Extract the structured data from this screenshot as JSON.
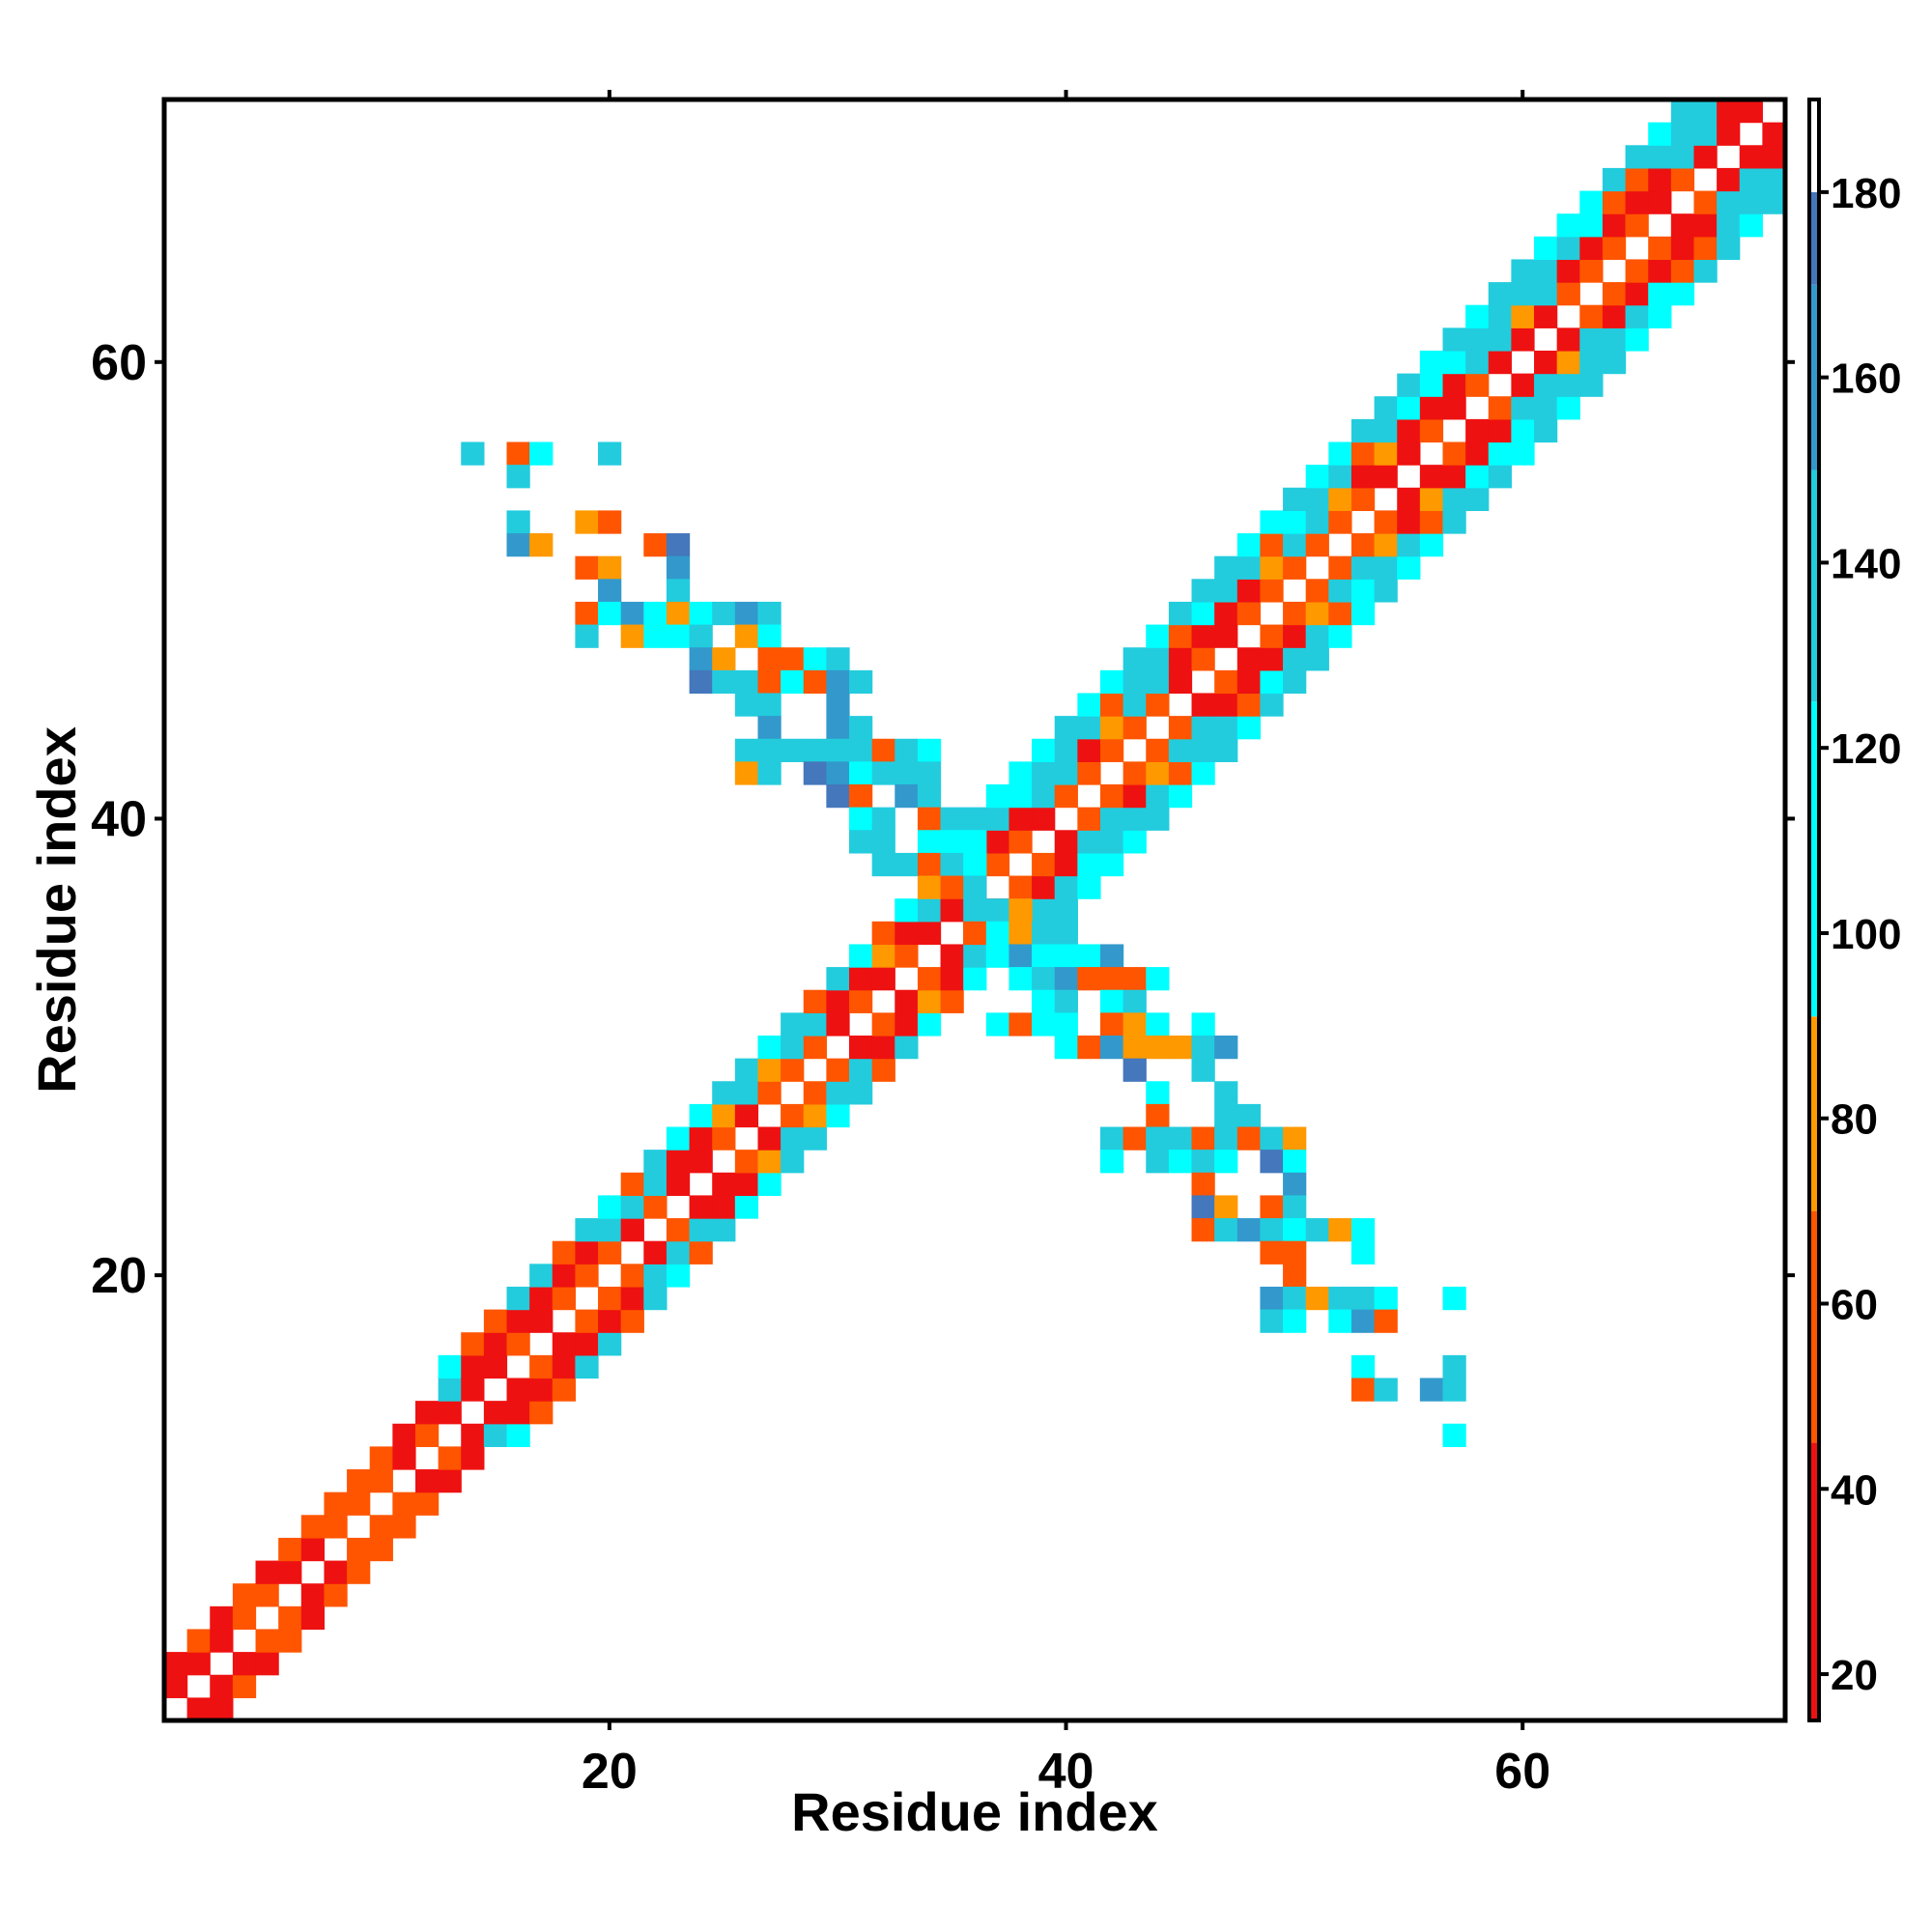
{
  "chart_data": {
    "type": "heatmap",
    "xlabel": "Residue index",
    "ylabel": "Residue index",
    "n_residues": 71,
    "xlim": [
      1,
      71
    ],
    "ylim": [
      1,
      71
    ],
    "x_ticks": [
      20,
      40,
      60
    ],
    "y_ticks": [
      20,
      40,
      60
    ],
    "colorbar": {
      "range": [
        15,
        190
      ],
      "ticks": [
        20,
        40,
        60,
        80,
        100,
        120,
        140,
        160,
        180
      ],
      "segments": [
        {
          "from": 15,
          "to": 45,
          "color": "#ee1111"
        },
        {
          "from": 45,
          "to": 70,
          "color": "#ff5500"
        },
        {
          "from": 70,
          "to": 91,
          "color": "#ff9900"
        },
        {
          "from": 91,
          "to": 125,
          "color": "#00ffff"
        },
        {
          "from": 125,
          "to": 150,
          "color": "#22ccdd"
        },
        {
          "from": 150,
          "to": 170,
          "color": "#3399cc"
        },
        {
          "from": 170,
          "to": 180,
          "color": "#4477bb"
        },
        {
          "from": 180,
          "to": 190,
          "color": "#ffffff"
        }
      ]
    },
    "main_diagonal_offsets": [
      1,
      2,
      3,
      4
    ],
    "band_widths": [
      {
        "from": 1,
        "to": 12,
        "max_offset": 2
      },
      {
        "from": 12,
        "to": 35,
        "max_offset": 3
      },
      {
        "from": 35,
        "to": 71,
        "max_offset": 4
      }
    ],
    "anti_diagonal": {
      "description_free": true,
      "points": [
        [
          14,
          56
        ],
        [
          16,
          56
        ],
        [
          17,
          56
        ],
        [
          20,
          56
        ],
        [
          16,
          55
        ],
        [
          16,
          53
        ],
        [
          19,
          53
        ],
        [
          20,
          53
        ],
        [
          16,
          52
        ],
        [
          17,
          52
        ],
        [
          22,
          52
        ],
        [
          23,
          52
        ],
        [
          19,
          51
        ],
        [
          20,
          51
        ],
        [
          23,
          51
        ],
        [
          20,
          50
        ],
        [
          23,
          50
        ],
        [
          19,
          49
        ],
        [
          20,
          49
        ],
        [
          21,
          49
        ],
        [
          22,
          49
        ],
        [
          23,
          49
        ],
        [
          24,
          49
        ],
        [
          25,
          49
        ],
        [
          26,
          49
        ],
        [
          27,
          49
        ],
        [
          19,
          48
        ],
        [
          21,
          48
        ],
        [
          22,
          48
        ],
        [
          23,
          48
        ],
        [
          24,
          48
        ],
        [
          26,
          48
        ],
        [
          27,
          48
        ],
        [
          24,
          47
        ],
        [
          25,
          47
        ],
        [
          27,
          47
        ],
        [
          28,
          47
        ],
        [
          29,
          47
        ],
        [
          30,
          47
        ],
        [
          24,
          46
        ],
        [
          25,
          46
        ],
        [
          26,
          46
        ],
        [
          27,
          46
        ],
        [
          28,
          46
        ],
        [
          29,
          46
        ],
        [
          30,
          46
        ],
        [
          31,
          46
        ],
        [
          26,
          45
        ],
        [
          27,
          45
        ],
        [
          30,
          45
        ],
        [
          27,
          44
        ],
        [
          30,
          44
        ],
        [
          31,
          44
        ],
        [
          26,
          43
        ],
        [
          27,
          43
        ],
        [
          28,
          43
        ],
        [
          29,
          43
        ],
        [
          30,
          43
        ],
        [
          31,
          43
        ],
        [
          32,
          43
        ],
        [
          33,
          43
        ],
        [
          34,
          43
        ],
        [
          26,
          42
        ],
        [
          27,
          42
        ],
        [
          29,
          42
        ],
        [
          30,
          42
        ],
        [
          31,
          42
        ],
        [
          32,
          42
        ],
        [
          33,
          42
        ],
        [
          34,
          42
        ],
        [
          30,
          41
        ],
        [
          31,
          41
        ],
        [
          33,
          41
        ],
        [
          34,
          41
        ],
        [
          31,
          40
        ],
        [
          32,
          40
        ],
        [
          34,
          40
        ],
        [
          35,
          40
        ],
        [
          31,
          39
        ],
        [
          32,
          39
        ],
        [
          34,
          39
        ],
        [
          35,
          39
        ],
        [
          36,
          39
        ],
        [
          32,
          38
        ],
        [
          33,
          38
        ],
        [
          34,
          38
        ],
        [
          35,
          38
        ],
        [
          36,
          38
        ],
        [
          34,
          37
        ],
        [
          35,
          37
        ],
        [
          36,
          37
        ],
        [
          36,
          36
        ],
        [
          37,
          36
        ],
        [
          38,
          36
        ],
        [
          36,
          35
        ],
        [
          37,
          35
        ],
        [
          38,
          35
        ],
        [
          39,
          35
        ],
        [
          40,
          35
        ],
        [
          37,
          34
        ],
        [
          38,
          34
        ],
        [
          39,
          34
        ],
        [
          40,
          34
        ],
        [
          41,
          34
        ],
        [
          42,
          34
        ],
        [
          38,
          33
        ],
        [
          39,
          33
        ],
        [
          40,
          33
        ],
        [
          41,
          33
        ],
        [
          42,
          33
        ],
        [
          43,
          33
        ],
        [
          44,
          33
        ],
        [
          39,
          32
        ],
        [
          40,
          32
        ],
        [
          42,
          32
        ],
        [
          43,
          32
        ],
        [
          37,
          31
        ],
        [
          38,
          31
        ],
        [
          39,
          31
        ],
        [
          40,
          31
        ],
        [
          42,
          31
        ],
        [
          43,
          31
        ],
        [
          44,
          31
        ],
        [
          46,
          31
        ],
        [
          40,
          30
        ],
        [
          41,
          30
        ],
        [
          42,
          30
        ],
        [
          43,
          30
        ],
        [
          44,
          30
        ],
        [
          45,
          30
        ],
        [
          46,
          30
        ],
        [
          47,
          30
        ],
        [
          43,
          29
        ],
        [
          46,
          29
        ],
        [
          44,
          28
        ],
        [
          47,
          28
        ],
        [
          44,
          27
        ],
        [
          47,
          27
        ],
        [
          48,
          27
        ],
        [
          42,
          26
        ],
        [
          43,
          26
        ],
        [
          44,
          26
        ],
        [
          45,
          26
        ],
        [
          46,
          26
        ],
        [
          47,
          26
        ],
        [
          48,
          26
        ],
        [
          49,
          26
        ],
        [
          50,
          26
        ],
        [
          42,
          25
        ],
        [
          44,
          25
        ],
        [
          45,
          25
        ],
        [
          46,
          25
        ],
        [
          47,
          25
        ],
        [
          49,
          25
        ],
        [
          50,
          25
        ],
        [
          46,
          24
        ],
        [
          50,
          24
        ],
        [
          46,
          23
        ],
        [
          47,
          23
        ],
        [
          49,
          23
        ],
        [
          50,
          23
        ],
        [
          46,
          22
        ],
        [
          47,
          22
        ],
        [
          48,
          22
        ],
        [
          49,
          22
        ],
        [
          50,
          22
        ],
        [
          51,
          22
        ],
        [
          52,
          22
        ],
        [
          53,
          22
        ],
        [
          49,
          21
        ],
        [
          50,
          21
        ],
        [
          53,
          21
        ],
        [
          50,
          20
        ],
        [
          49,
          19
        ],
        [
          50,
          19
        ],
        [
          51,
          19
        ],
        [
          52,
          19
        ],
        [
          53,
          19
        ],
        [
          54,
          19
        ],
        [
          57,
          19
        ],
        [
          49,
          18
        ],
        [
          50,
          18
        ],
        [
          52,
          18
        ],
        [
          53,
          18
        ],
        [
          54,
          18
        ],
        [
          53,
          16
        ],
        [
          57,
          16
        ],
        [
          53,
          15
        ],
        [
          54,
          15
        ],
        [
          56,
          15
        ],
        [
          57,
          15
        ],
        [
          57,
          13
        ]
      ]
    }
  }
}
